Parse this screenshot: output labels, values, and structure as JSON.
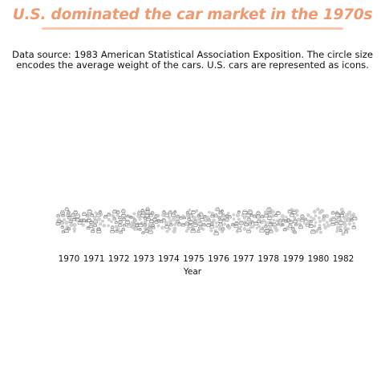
{
  "header": {
    "title": "U.S. dominated the car market in the 1970s",
    "subtitle_line1": "Data source: 1983 American Statistical Association Exposition. The circle size",
    "subtitle_line2": "encodes the average weight of the cars. U.S. cars are represented as icons."
  },
  "colors": {
    "title": "#ee9a72",
    "underline": "#f8c9ad",
    "us_car": "#8a8a8a",
    "other_car": "#c4c4c4"
  },
  "chart_data": {
    "type": "scatter",
    "title": "U.S. dominated the car market in the 1970s",
    "xlabel": "Year",
    "ylabel": "",
    "categories": [
      "1970",
      "1971",
      "1972",
      "1973",
      "1974",
      "1975",
      "1976",
      "1977",
      "1978",
      "1979",
      "1980",
      "1982"
    ],
    "series": [
      {
        "us_count": [
          22,
          18,
          20,
          28,
          14,
          20,
          20,
          16,
          20,
          18,
          6,
          16
        ]
      },
      {
        "other_count": [
          7,
          9,
          8,
          12,
          13,
          10,
          14,
          12,
          16,
          11,
          23,
          18
        ]
      }
    ],
    "mark": "car icon for U.S. cars, circle for others; size encodes average weight",
    "grid": false,
    "legend": "none"
  }
}
